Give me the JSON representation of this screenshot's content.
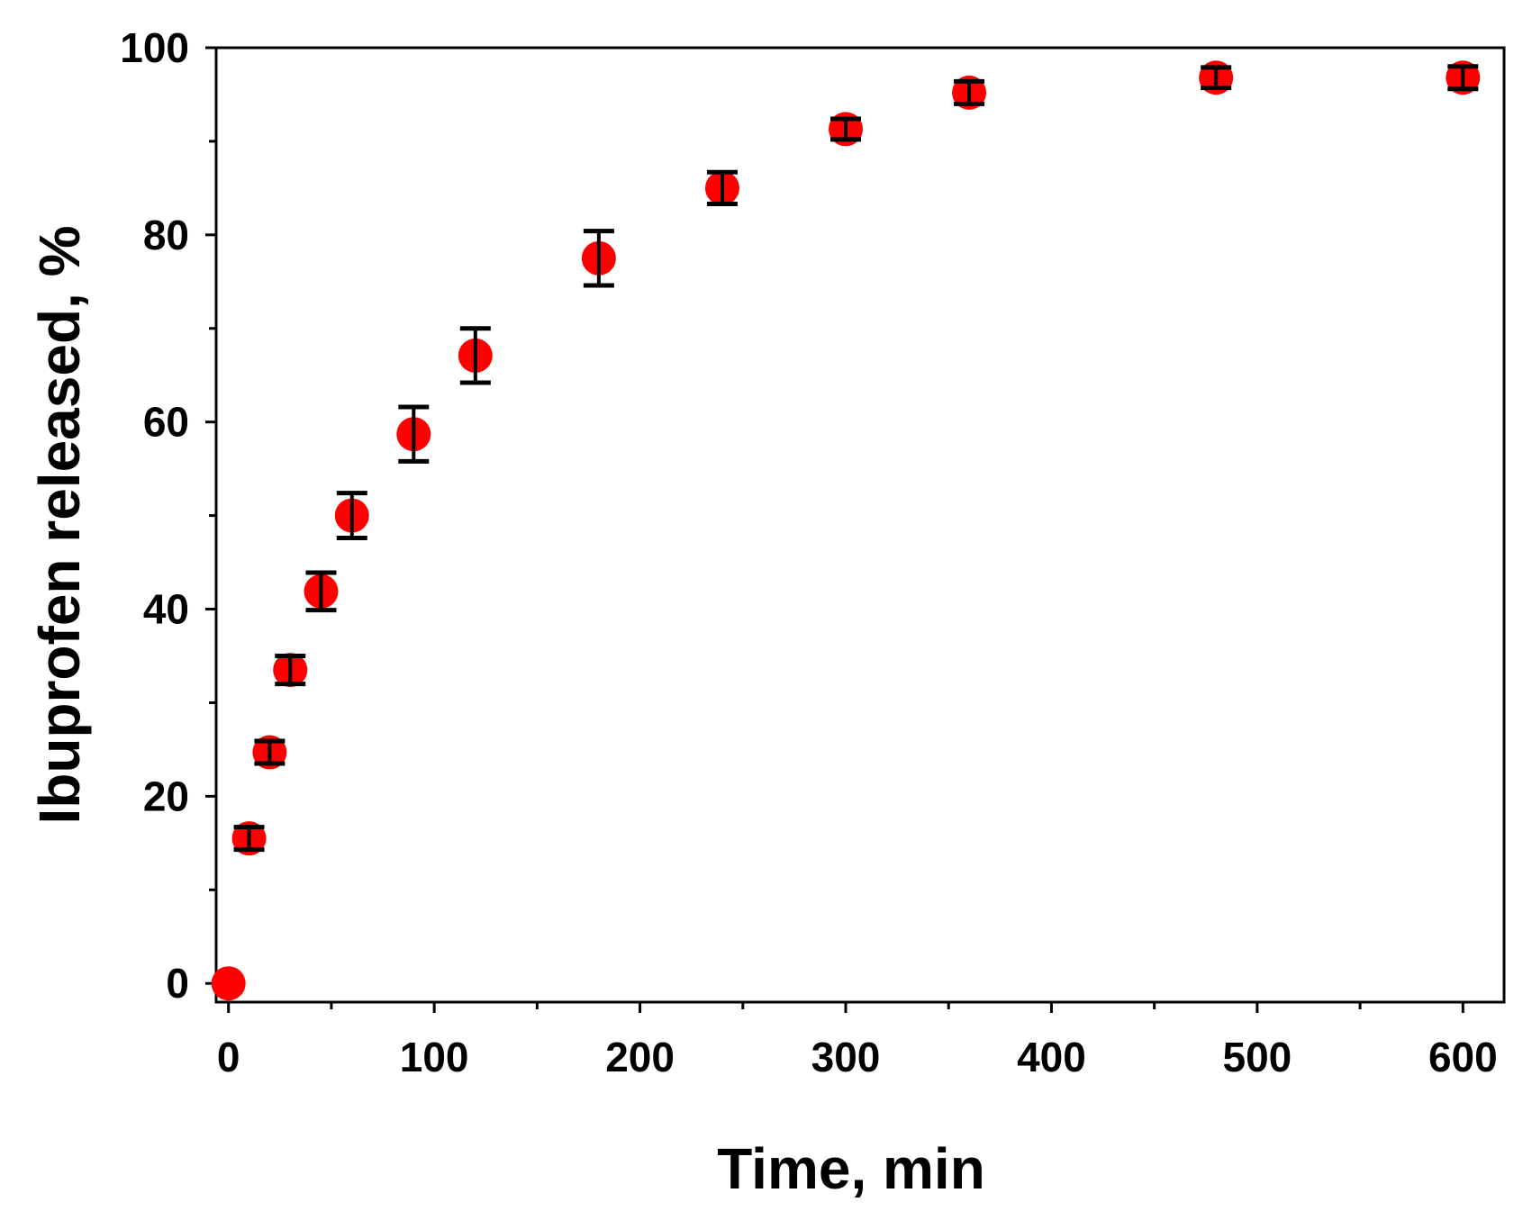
{
  "chart_data": {
    "type": "scatter",
    "title": "",
    "xlabel": "Time, min",
    "ylabel": "Ibuprofen released, %",
    "xlim": [
      -6,
      620
    ],
    "ylim": [
      -2,
      100
    ],
    "xticks": [
      0,
      100,
      200,
      300,
      400,
      500,
      600
    ],
    "yticks": [
      0,
      20,
      40,
      60,
      80,
      100
    ],
    "x_minor_step": 50,
    "y_minor_step": 10,
    "grid": false,
    "legend": "none",
    "series": [
      {
        "color": "#ff0000",
        "error_color": "#000000",
        "points": [
          {
            "x": 0,
            "y": 0,
            "err": 0
          },
          {
            "x": 10,
            "y": 15.5,
            "err": 1.2
          },
          {
            "x": 20,
            "y": 24.7,
            "err": 1.2
          },
          {
            "x": 30,
            "y": 33.5,
            "err": 1.5
          },
          {
            "x": 45,
            "y": 41.9,
            "err": 2.0
          },
          {
            "x": 60,
            "y": 50.0,
            "err": 2.4
          },
          {
            "x": 90,
            "y": 58.7,
            "err": 2.9
          },
          {
            "x": 120,
            "y": 67.1,
            "err": 2.9
          },
          {
            "x": 180,
            "y": 77.5,
            "err": 2.9
          },
          {
            "x": 240,
            "y": 85.0,
            "err": 1.7
          },
          {
            "x": 300,
            "y": 91.3,
            "err": 1.1
          },
          {
            "x": 360,
            "y": 95.2,
            "err": 1.2
          },
          {
            "x": 480,
            "y": 96.8,
            "err": 1.1
          },
          {
            "x": 600,
            "y": 96.8,
            "err": 1.2
          }
        ]
      }
    ]
  }
}
